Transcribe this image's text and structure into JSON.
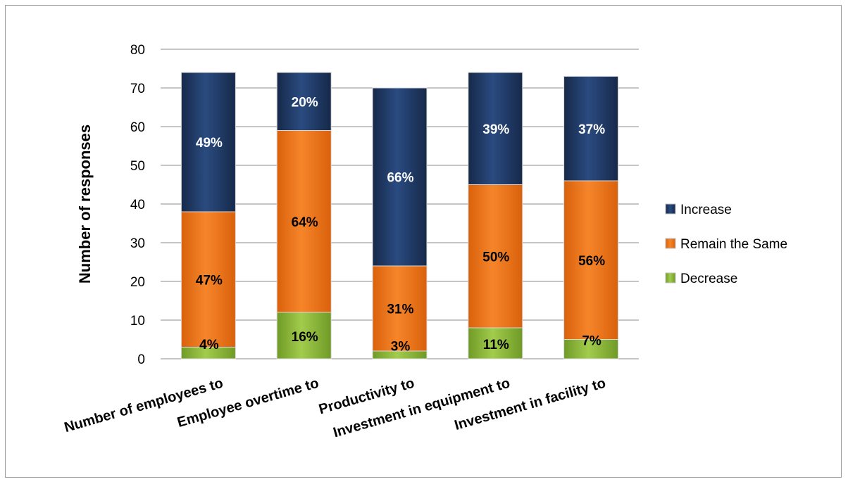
{
  "chart_data": {
    "type": "bar",
    "stacked": true,
    "title": "",
    "xlabel": "",
    "ylabel": "Number of responses",
    "ylim": [
      0,
      80
    ],
    "yticks": [
      0,
      10,
      20,
      30,
      40,
      50,
      60,
      70,
      80
    ],
    "grid": true,
    "legend_position": "right",
    "categories": [
      "Number of employees to",
      "Employee overtime to",
      "Productivity to",
      "Investment in equipment to",
      "Investment in facility  to"
    ],
    "series": [
      {
        "name": "Decrease",
        "color": "#8dba3a",
        "values": [
          3,
          12,
          2,
          8,
          5
        ],
        "labels": [
          "4%",
          "16%",
          "3%",
          "11%",
          "7%"
        ],
        "label_color": "#000000"
      },
      {
        "name": "Remain the Same",
        "color": "#ee7518",
        "values": [
          35,
          47,
          22,
          37,
          41
        ],
        "labels": [
          "47%",
          "64%",
          "31%",
          "50%",
          "56%"
        ],
        "label_color": "#000000"
      },
      {
        "name": "Increase",
        "color": "#1f3b68",
        "values": [
          36,
          15,
          46,
          29,
          27
        ],
        "labels": [
          "49%",
          "20%",
          "66%",
          "39%",
          "37%"
        ],
        "label_color": "#ffffff"
      }
    ]
  }
}
